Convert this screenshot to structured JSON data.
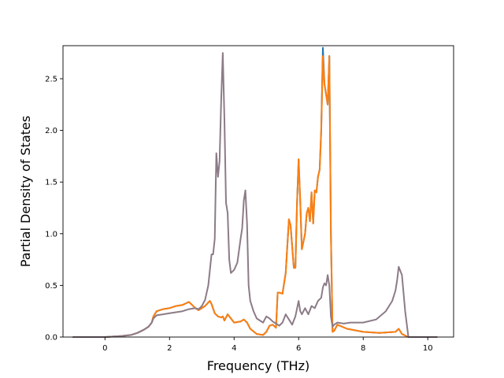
{
  "chart_data": {
    "type": "line",
    "title": "",
    "xlabel": "Frequency (THz)",
    "ylabel": "Partial Density of States",
    "xlim": [
      -1.3,
      10.8
    ],
    "ylim": [
      0,
      2.82
    ],
    "xticks": [
      0,
      2,
      4,
      6,
      8,
      10
    ],
    "xtick_labels": [
      "0",
      "2",
      "4",
      "6",
      "8",
      "10"
    ],
    "yticks": [
      0.0,
      0.5,
      1.0,
      1.5,
      2.0,
      2.5
    ],
    "ytick_labels": [
      "0.0",
      "0.5",
      "1.0",
      "1.5",
      "2.0",
      "2.5"
    ],
    "grid": false,
    "legend": false,
    "series": [
      {
        "color": "#1f77b4",
        "points": [
          [
            -1.0,
            0
          ],
          [
            0.0,
            0
          ],
          [
            0.5,
            0.01
          ],
          [
            0.8,
            0.02
          ],
          [
            1.0,
            0.04
          ],
          [
            1.2,
            0.07
          ],
          [
            1.35,
            0.1
          ],
          [
            1.45,
            0.14
          ],
          [
            1.5,
            0.2
          ],
          [
            1.6,
            0.25
          ],
          [
            1.8,
            0.27
          ],
          [
            2.0,
            0.28
          ],
          [
            2.2,
            0.3
          ],
          [
            2.4,
            0.31
          ],
          [
            2.6,
            0.34
          ],
          [
            2.7,
            0.31
          ],
          [
            2.8,
            0.28
          ],
          [
            2.9,
            0.26
          ],
          [
            3.1,
            0.3
          ],
          [
            3.25,
            0.35
          ],
          [
            3.3,
            0.32
          ],
          [
            3.4,
            0.23
          ],
          [
            3.5,
            0.2
          ],
          [
            3.6,
            0.19
          ],
          [
            3.65,
            0.2
          ],
          [
            3.7,
            0.16
          ],
          [
            3.8,
            0.22
          ],
          [
            3.9,
            0.18
          ],
          [
            4.0,
            0.14
          ],
          [
            4.2,
            0.15
          ],
          [
            4.3,
            0.17
          ],
          [
            4.4,
            0.14
          ],
          [
            4.5,
            0.08
          ],
          [
            4.7,
            0.03
          ],
          [
            4.9,
            0.02
          ],
          [
            5.0,
            0.05
          ],
          [
            5.1,
            0.11
          ],
          [
            5.2,
            0.12
          ],
          [
            5.3,
            0.09
          ],
          [
            5.35,
            0.43
          ],
          [
            5.4,
            0.43
          ],
          [
            5.5,
            0.42
          ],
          [
            5.6,
            0.62
          ],
          [
            5.7,
            1.14
          ],
          [
            5.75,
            1.08
          ],
          [
            5.85,
            0.67
          ],
          [
            5.9,
            0.67
          ],
          [
            5.95,
            1.3
          ],
          [
            6.0,
            1.72
          ],
          [
            6.05,
            1.3
          ],
          [
            6.1,
            0.85
          ],
          [
            6.2,
            1.0
          ],
          [
            6.25,
            1.2
          ],
          [
            6.3,
            1.25
          ],
          [
            6.35,
            1.12
          ],
          [
            6.4,
            1.4
          ],
          [
            6.45,
            1.1
          ],
          [
            6.5,
            1.42
          ],
          [
            6.55,
            1.4
          ],
          [
            6.6,
            1.55
          ],
          [
            6.65,
            1.62
          ],
          [
            6.7,
            2.0
          ],
          [
            6.75,
            2.8
          ],
          [
            6.8,
            2.45
          ],
          [
            6.9,
            2.25
          ],
          [
            6.95,
            2.72
          ],
          [
            7.0,
            1.0
          ],
          [
            7.05,
            0.05
          ],
          [
            7.1,
            0.06
          ],
          [
            7.2,
            0.12
          ],
          [
            7.5,
            0.08
          ],
          [
            8.0,
            0.05
          ],
          [
            8.5,
            0.04
          ],
          [
            9.0,
            0.05
          ],
          [
            9.1,
            0.08
          ],
          [
            9.2,
            0.03
          ],
          [
            9.4,
            0.0
          ],
          [
            10.3,
            0.0
          ]
        ]
      },
      {
        "color": "#ff7f0e",
        "points": [
          [
            -1.0,
            0
          ],
          [
            0.0,
            0
          ],
          [
            0.5,
            0.01
          ],
          [
            0.8,
            0.02
          ],
          [
            1.0,
            0.04
          ],
          [
            1.2,
            0.07
          ],
          [
            1.35,
            0.1
          ],
          [
            1.45,
            0.14
          ],
          [
            1.5,
            0.2
          ],
          [
            1.6,
            0.25
          ],
          [
            1.8,
            0.27
          ],
          [
            2.0,
            0.28
          ],
          [
            2.2,
            0.3
          ],
          [
            2.4,
            0.31
          ],
          [
            2.6,
            0.34
          ],
          [
            2.7,
            0.31
          ],
          [
            2.8,
            0.28
          ],
          [
            2.9,
            0.26
          ],
          [
            3.1,
            0.3
          ],
          [
            3.25,
            0.35
          ],
          [
            3.3,
            0.32
          ],
          [
            3.4,
            0.23
          ],
          [
            3.5,
            0.2
          ],
          [
            3.6,
            0.19
          ],
          [
            3.65,
            0.2
          ],
          [
            3.7,
            0.16
          ],
          [
            3.8,
            0.22
          ],
          [
            3.9,
            0.18
          ],
          [
            4.0,
            0.14
          ],
          [
            4.2,
            0.15
          ],
          [
            4.3,
            0.17
          ],
          [
            4.4,
            0.14
          ],
          [
            4.5,
            0.08
          ],
          [
            4.7,
            0.03
          ],
          [
            4.9,
            0.02
          ],
          [
            5.0,
            0.05
          ],
          [
            5.1,
            0.11
          ],
          [
            5.2,
            0.12
          ],
          [
            5.3,
            0.09
          ],
          [
            5.35,
            0.43
          ],
          [
            5.4,
            0.43
          ],
          [
            5.5,
            0.42
          ],
          [
            5.6,
            0.62
          ],
          [
            5.7,
            1.14
          ],
          [
            5.75,
            1.08
          ],
          [
            5.85,
            0.67
          ],
          [
            5.9,
            0.67
          ],
          [
            5.95,
            1.3
          ],
          [
            6.0,
            1.72
          ],
          [
            6.05,
            1.3
          ],
          [
            6.1,
            0.85
          ],
          [
            6.2,
            1.0
          ],
          [
            6.25,
            1.2
          ],
          [
            6.3,
            1.25
          ],
          [
            6.35,
            1.12
          ],
          [
            6.4,
            1.4
          ],
          [
            6.45,
            1.1
          ],
          [
            6.5,
            1.42
          ],
          [
            6.55,
            1.4
          ],
          [
            6.6,
            1.55
          ],
          [
            6.65,
            1.62
          ],
          [
            6.7,
            2.0
          ],
          [
            6.75,
            2.72
          ],
          [
            6.8,
            2.45
          ],
          [
            6.9,
            2.25
          ],
          [
            6.95,
            2.72
          ],
          [
            7.0,
            1.0
          ],
          [
            7.05,
            0.05
          ],
          [
            7.1,
            0.06
          ],
          [
            7.2,
            0.12
          ],
          [
            7.5,
            0.08
          ],
          [
            8.0,
            0.05
          ],
          [
            8.5,
            0.04
          ],
          [
            9.0,
            0.05
          ],
          [
            9.1,
            0.08
          ],
          [
            9.2,
            0.03
          ],
          [
            9.4,
            0.0
          ],
          [
            10.3,
            0.0
          ]
        ]
      },
      {
        "color": "#8c7b87",
        "points": [
          [
            -1.0,
            0
          ],
          [
            0.0,
            0
          ],
          [
            0.5,
            0.01
          ],
          [
            0.8,
            0.02
          ],
          [
            1.0,
            0.04
          ],
          [
            1.2,
            0.07
          ],
          [
            1.35,
            0.1
          ],
          [
            1.45,
            0.14
          ],
          [
            1.5,
            0.18
          ],
          [
            1.6,
            0.21
          ],
          [
            1.8,
            0.22
          ],
          [
            2.0,
            0.23
          ],
          [
            2.2,
            0.24
          ],
          [
            2.4,
            0.25
          ],
          [
            2.6,
            0.27
          ],
          [
            2.8,
            0.28
          ],
          [
            2.9,
            0.27
          ],
          [
            3.0,
            0.3
          ],
          [
            3.1,
            0.36
          ],
          [
            3.2,
            0.5
          ],
          [
            3.3,
            0.8
          ],
          [
            3.35,
            0.8
          ],
          [
            3.4,
            0.95
          ],
          [
            3.45,
            1.78
          ],
          [
            3.5,
            1.55
          ],
          [
            3.55,
            1.7
          ],
          [
            3.6,
            2.3
          ],
          [
            3.65,
            2.75
          ],
          [
            3.7,
            2.1
          ],
          [
            3.75,
            1.3
          ],
          [
            3.8,
            1.2
          ],
          [
            3.85,
            0.75
          ],
          [
            3.9,
            0.62
          ],
          [
            4.0,
            0.65
          ],
          [
            4.1,
            0.72
          ],
          [
            4.2,
            0.95
          ],
          [
            4.25,
            1.05
          ],
          [
            4.3,
            1.32
          ],
          [
            4.35,
            1.42
          ],
          [
            4.4,
            1.1
          ],
          [
            4.45,
            0.5
          ],
          [
            4.5,
            0.35
          ],
          [
            4.6,
            0.25
          ],
          [
            4.7,
            0.18
          ],
          [
            4.8,
            0.16
          ],
          [
            4.9,
            0.14
          ],
          [
            5.0,
            0.2
          ],
          [
            5.1,
            0.18
          ],
          [
            5.2,
            0.15
          ],
          [
            5.3,
            0.13
          ],
          [
            5.4,
            0.11
          ],
          [
            5.5,
            0.14
          ],
          [
            5.6,
            0.22
          ],
          [
            5.7,
            0.17
          ],
          [
            5.8,
            0.12
          ],
          [
            5.9,
            0.2
          ],
          [
            6.0,
            0.35
          ],
          [
            6.05,
            0.25
          ],
          [
            6.1,
            0.22
          ],
          [
            6.2,
            0.28
          ],
          [
            6.3,
            0.22
          ],
          [
            6.4,
            0.3
          ],
          [
            6.5,
            0.28
          ],
          [
            6.6,
            0.35
          ],
          [
            6.7,
            0.38
          ],
          [
            6.75,
            0.48
          ],
          [
            6.8,
            0.52
          ],
          [
            6.85,
            0.5
          ],
          [
            6.9,
            0.6
          ],
          [
            6.95,
            0.5
          ],
          [
            7.0,
            0.2
          ],
          [
            7.05,
            0.1
          ],
          [
            7.1,
            0.12
          ],
          [
            7.2,
            0.14
          ],
          [
            7.4,
            0.13
          ],
          [
            7.6,
            0.14
          ],
          [
            8.0,
            0.14
          ],
          [
            8.4,
            0.17
          ],
          [
            8.7,
            0.25
          ],
          [
            8.9,
            0.35
          ],
          [
            9.0,
            0.45
          ],
          [
            9.05,
            0.55
          ],
          [
            9.1,
            0.68
          ],
          [
            9.2,
            0.6
          ],
          [
            9.3,
            0.25
          ],
          [
            9.4,
            0.0
          ],
          [
            10.3,
            0.0
          ]
        ]
      }
    ]
  }
}
